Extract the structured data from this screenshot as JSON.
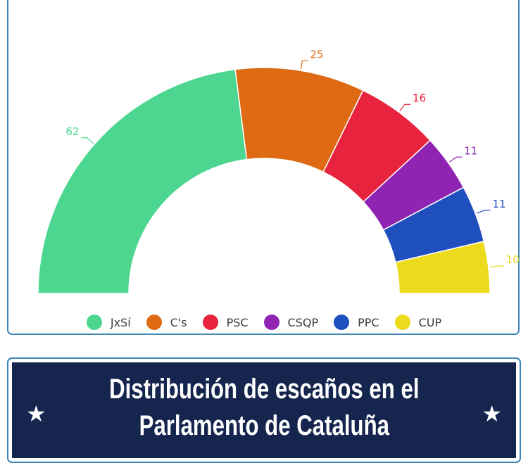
{
  "chart_data": {
    "type": "pie",
    "subtype": "half-donut",
    "categories": [
      "JxSí",
      "C's",
      "PSC",
      "CSQP",
      "PPC",
      "CUP"
    ],
    "values": [
      62,
      25,
      16,
      11,
      11,
      10
    ],
    "colors": [
      "#4cd68f",
      "#de6b13",
      "#e8233d",
      "#8e24b1",
      "#1f4fbd",
      "#ecda1c"
    ],
    "legend_position": "bottom"
  },
  "legend": [
    {
      "label": "JxSí",
      "color": "#4cd68f"
    },
    {
      "label": "C's",
      "color": "#de6b13"
    },
    {
      "label": "PSC",
      "color": "#e8233d"
    },
    {
      "label": "CSQP",
      "color": "#8e24b1"
    },
    {
      "label": "PPC",
      "color": "#1f4fbd"
    },
    {
      "label": "CUP",
      "color": "#ecda1c"
    }
  ],
  "banner": {
    "line1": "Distribución de escaños en el",
    "line2": "Parlamento de Cataluña",
    "star_icon": "★",
    "background": "#15254e"
  }
}
